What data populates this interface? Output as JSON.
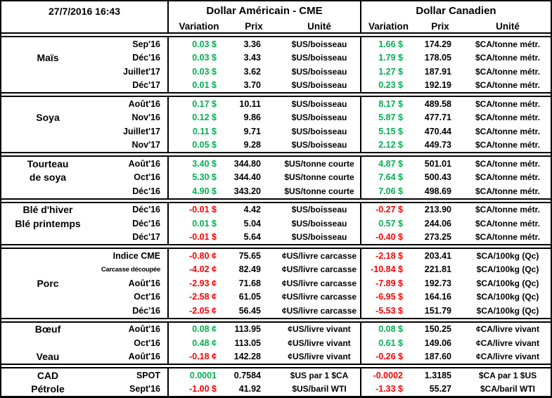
{
  "colors": {
    "positive": "#00B050",
    "negative": "#FF0000",
    "border": "#000000",
    "background": "#FFFFFF"
  },
  "header": {
    "timestamp": "27/7/2016 16:43",
    "usd_group": "Dollar Américain - CME",
    "cad_group": "Dollar Canadien",
    "columns": {
      "variation": "Variation",
      "prix": "Prix",
      "unite": "Unité"
    }
  },
  "sections": [
    {
      "id": "mais",
      "rows": [
        {
          "name": "",
          "month": "Sep'16",
          "us_var": "0.03 $",
          "us_price": "3.36",
          "us_unit": "$US/boisseau",
          "ca_var": "1.66 $",
          "ca_price": "174.29",
          "ca_unit": "$CA/tonne métr."
        },
        {
          "name": "Maïs",
          "month": "Déc'16",
          "us_var": "0.03 $",
          "us_price": "3.43",
          "us_unit": "$US/boisseau",
          "ca_var": "1.79 $",
          "ca_price": "178.05",
          "ca_unit": "$CA/tonne métr."
        },
        {
          "name": "",
          "month": "Juillet'17",
          "us_var": "0.03 $",
          "us_price": "3.62",
          "us_unit": "$US/boisseau",
          "ca_var": "1.27 $",
          "ca_price": "187.91",
          "ca_unit": "$CA/tonne métr."
        },
        {
          "name": "",
          "month": "Déc'17",
          "us_var": "0.01 $",
          "us_price": "3.70",
          "us_unit": "$US/boisseau",
          "ca_var": "0.23 $",
          "ca_price": "192.19",
          "ca_unit": "$CA/tonne métr."
        }
      ]
    },
    {
      "id": "soya",
      "rows": [
        {
          "name": "",
          "month": "Août'16",
          "us_var": "0.17 $",
          "us_price": "10.11",
          "us_unit": "$US/boisseau",
          "ca_var": "8.17 $",
          "ca_price": "489.58",
          "ca_unit": "$CA/tonne métr."
        },
        {
          "name": "Soya",
          "month": "Nov'16",
          "us_var": "0.12 $",
          "us_price": "9.86",
          "us_unit": "$US/boisseau",
          "ca_var": "5.87 $",
          "ca_price": "477.71",
          "ca_unit": "$CA/tonne métr."
        },
        {
          "name": "",
          "month": "Juillet'17",
          "us_var": "0.11 $",
          "us_price": "9.71",
          "us_unit": "$US/boisseau",
          "ca_var": "5.15 $",
          "ca_price": "470.44",
          "ca_unit": "$CA/tonne métr."
        },
        {
          "name": "",
          "month": "Nov'17",
          "us_var": "0.05 $",
          "us_price": "9.28",
          "us_unit": "$US/boisseau",
          "ca_var": "2.12 $",
          "ca_price": "449.73",
          "ca_unit": "$CA/tonne métr."
        }
      ]
    },
    {
      "id": "tourteau-de-soya",
      "rows": [
        {
          "name": "Tourteau",
          "month": "Août'16",
          "us_var": "3.40 $",
          "us_price": "344.80",
          "us_unit": "$US/tonne courte",
          "ca_var": "4.87 $",
          "ca_price": "501.01",
          "ca_unit": "$CA/tonne métr."
        },
        {
          "name": "de soya",
          "month": "Oct'16",
          "us_var": "5.30 $",
          "us_price": "344.40",
          "us_unit": "$US/tonne courte",
          "ca_var": "7.64 $",
          "ca_price": "500.43",
          "ca_unit": "$CA/tonne métr."
        },
        {
          "name": "",
          "month": "Déc'16",
          "us_var": "4.90 $",
          "us_price": "343.20",
          "us_unit": "$US/tonne courte",
          "ca_var": "7.06 $",
          "ca_price": "498.69",
          "ca_unit": "$CA/tonne métr."
        }
      ]
    },
    {
      "id": "ble",
      "rows": [
        {
          "name": "Blé d'hiver",
          "month": "Déc'16",
          "us_var": "-0.01 $",
          "us_price": "4.42",
          "us_unit": "$US/boisseau",
          "ca_var": "-0.27 $",
          "ca_price": "213.90",
          "ca_unit": "$CA/tonne métr."
        },
        {
          "name": "Blé printemps",
          "month": "Déc'16",
          "us_var": "0.01 $",
          "us_price": "5.04",
          "us_unit": "$US/boisseau",
          "ca_var": "0.57 $",
          "ca_price": "244.06",
          "ca_unit": "$CA/tonne métr."
        },
        {
          "name": "",
          "month": "Déc'17",
          "us_var": "-0.01 $",
          "us_price": "5.64",
          "us_unit": "$US/boisseau",
          "ca_var": "-0.40 $",
          "ca_price": "273.25",
          "ca_unit": "$CA/tonne métr."
        }
      ]
    },
    {
      "id": "porc",
      "rows": [
        {
          "name": "",
          "month": "Indice CME",
          "us_var": "-0.80 ¢",
          "us_price": "75.65",
          "us_unit": "¢US/livre carcasse",
          "ca_var": "-2.18 $",
          "ca_price": "203.41",
          "ca_unit": "$CA/100kg (Qc)"
        },
        {
          "name": "",
          "month": "Carcasse découpée",
          "us_var": "-4.02 ¢",
          "us_price": "82.49",
          "us_unit": "¢US/livre carcasse",
          "ca_var": "-10.84 $",
          "ca_price": "221.81",
          "ca_unit": "$CA/100kg (Qc)"
        },
        {
          "name": "Porc",
          "month": "Août'16",
          "us_var": "-2.93 ¢",
          "us_price": "71.68",
          "us_unit": "¢US/livre carcasse",
          "ca_var": "-7.89 $",
          "ca_price": "192.73",
          "ca_unit": "$CA/100kg (Qc)"
        },
        {
          "name": "",
          "month": "Oct'16",
          "us_var": "-2.58 ¢",
          "us_price": "61.05",
          "us_unit": "¢US/livre carcasse",
          "ca_var": "-6.95 $",
          "ca_price": "164.16",
          "ca_unit": "$CA/100kg (Qc)"
        },
        {
          "name": "",
          "month": "Déc'16",
          "us_var": "-2.05 ¢",
          "us_price": "56.45",
          "us_unit": "¢US/livre carcasse",
          "ca_var": "-5.53 $",
          "ca_price": "151.79",
          "ca_unit": "$CA/100kg (Qc)"
        }
      ]
    },
    {
      "id": "boeuf-veau",
      "rows": [
        {
          "name": "Bœuf",
          "month": "Août'16",
          "us_var": "0.08 ¢",
          "us_price": "113.95",
          "us_unit": "¢US/livre vivant",
          "ca_var": "0.08 $",
          "ca_price": "150.25",
          "ca_unit": "¢CA/livre vivant"
        },
        {
          "name": "",
          "month": "Oct'16",
          "us_var": "0.48 ¢",
          "us_price": "113.05",
          "us_unit": "¢US/livre vivant",
          "ca_var": "0.61 $",
          "ca_price": "149.06",
          "ca_unit": "¢CA/livre vivant"
        },
        {
          "name": "Veau",
          "month": "Août'16",
          "us_var": "-0.18 ¢",
          "us_price": "142.28",
          "us_unit": "¢US/livre vivant",
          "ca_var": "-0.26 $",
          "ca_price": "187.60",
          "ca_unit": "¢CA/livre vivant"
        }
      ]
    },
    {
      "id": "cad-petrole",
      "rows": [
        {
          "name": "CAD",
          "month": "SPOT",
          "us_var": "0.0001",
          "us_price": "0.7584",
          "us_unit": "$US par 1 $CA",
          "ca_var": "-0.0002",
          "ca_price": "1.3185",
          "ca_unit": "$CA par 1 $US"
        },
        {
          "name": "Pétrole",
          "month": "Sept'16",
          "us_var": "-1.00 $",
          "us_price": "41.92",
          "us_unit": "$US/baril WTI",
          "ca_var": "-1.33 $",
          "ca_price": "55.27",
          "ca_unit": "$CA/baril WTI"
        }
      ]
    }
  ]
}
